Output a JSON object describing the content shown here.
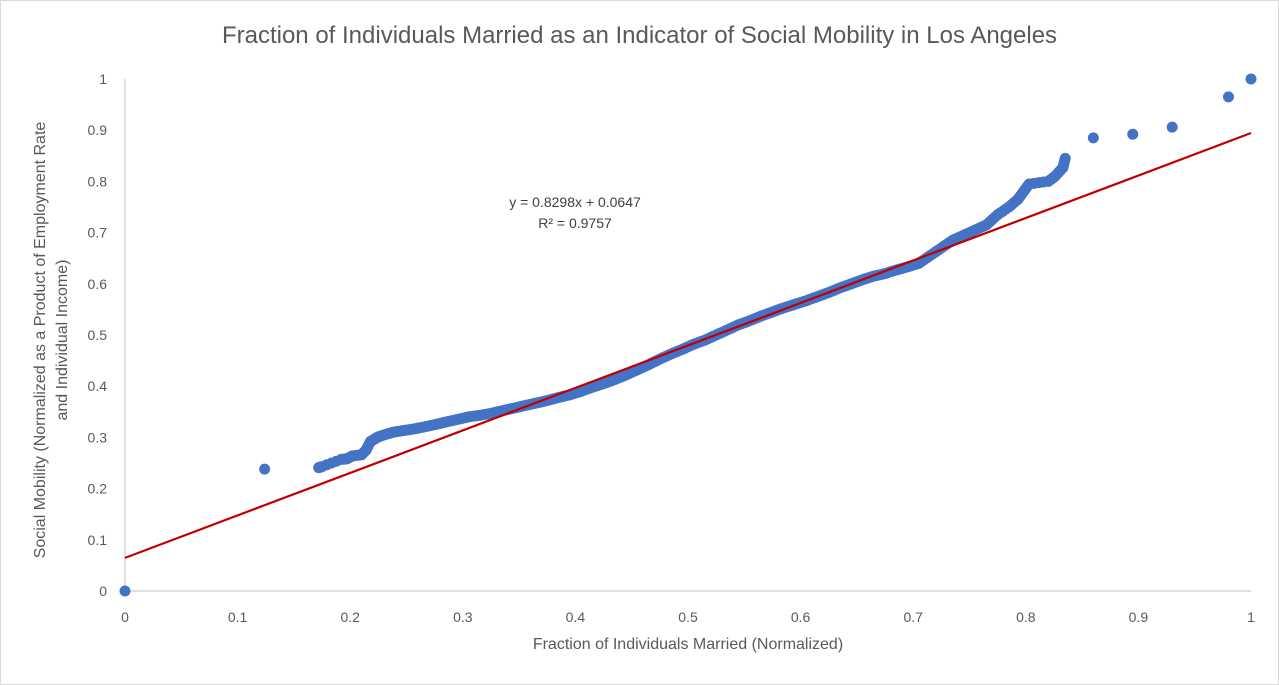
{
  "chart_data": {
    "type": "scatter",
    "title": "Fraction of Individuals Married as an Indicator of Social Mobility in Los Angeles",
    "xlabel": "Fraction of Individuals Married (Normalized)",
    "ylabel": [
      "Social Mobility (Normalized as a Product of Employment Rate",
      "and Individual Income)"
    ],
    "xlim": [
      0,
      1
    ],
    "ylim": [
      0,
      1
    ],
    "x_ticks": [
      "0",
      "0.1",
      "0.2",
      "0.3",
      "0.4",
      "0.5",
      "0.6",
      "0.7",
      "0.8",
      "0.9",
      "1"
    ],
    "y_ticks": [
      "0",
      "0.1",
      "0.2",
      "0.3",
      "0.4",
      "0.5",
      "0.6",
      "0.7",
      "0.8",
      "0.9",
      "1"
    ],
    "grid": false,
    "legend": "none",
    "point_color": "#4472c4",
    "trendline": {
      "slope": 0.8298,
      "intercept": 0.0647,
      "color": "#c00000",
      "equation_label": "y = 0.8298x + 0.0647",
      "r2_label": "R² = 0.9757"
    },
    "points": [
      [
        0,
        0
      ],
      [
        0.124,
        0.238
      ],
      [
        0.172,
        0.241
      ],
      [
        0.175,
        0.243
      ],
      [
        0.192,
        0.257
      ],
      [
        0.197,
        0.258
      ],
      [
        0.202,
        0.264
      ],
      [
        0.21,
        0.266
      ],
      [
        0.214,
        0.275
      ],
      [
        0.218,
        0.292
      ],
      [
        0.224,
        0.3
      ],
      [
        0.23,
        0.305
      ],
      [
        0.238,
        0.31
      ],
      [
        0.246,
        0.313
      ],
      [
        0.255,
        0.316
      ],
      [
        0.265,
        0.32
      ],
      [
        0.275,
        0.325
      ],
      [
        0.285,
        0.33
      ],
      [
        0.295,
        0.335
      ],
      [
        0.305,
        0.34
      ],
      [
        0.315,
        0.343
      ],
      [
        0.325,
        0.347
      ],
      [
        0.335,
        0.352
      ],
      [
        0.345,
        0.357
      ],
      [
        0.355,
        0.362
      ],
      [
        0.365,
        0.367
      ],
      [
        0.375,
        0.372
      ],
      [
        0.385,
        0.378
      ],
      [
        0.395,
        0.383
      ],
      [
        0.405,
        0.39
      ],
      [
        0.415,
        0.398
      ],
      [
        0.425,
        0.405
      ],
      [
        0.435,
        0.413
      ],
      [
        0.445,
        0.422
      ],
      [
        0.455,
        0.432
      ],
      [
        0.465,
        0.442
      ],
      [
        0.475,
        0.453
      ],
      [
        0.485,
        0.463
      ],
      [
        0.495,
        0.472
      ],
      [
        0.505,
        0.482
      ],
      [
        0.515,
        0.49
      ],
      [
        0.525,
        0.5
      ],
      [
        0.535,
        0.51
      ],
      [
        0.545,
        0.52
      ],
      [
        0.555,
        0.528
      ],
      [
        0.565,
        0.537
      ],
      [
        0.575,
        0.545
      ],
      [
        0.585,
        0.553
      ],
      [
        0.595,
        0.56
      ],
      [
        0.605,
        0.567
      ],
      [
        0.615,
        0.575
      ],
      [
        0.625,
        0.583
      ],
      [
        0.635,
        0.592
      ],
      [
        0.645,
        0.6
      ],
      [
        0.655,
        0.608
      ],
      [
        0.665,
        0.615
      ],
      [
        0.675,
        0.62
      ],
      [
        0.685,
        0.627
      ],
      [
        0.695,
        0.633
      ],
      [
        0.705,
        0.64
      ],
      [
        0.715,
        0.655
      ],
      [
        0.725,
        0.67
      ],
      [
        0.735,
        0.685
      ],
      [
        0.745,
        0.695
      ],
      [
        0.755,
        0.705
      ],
      [
        0.765,
        0.715
      ],
      [
        0.775,
        0.735
      ],
      [
        0.785,
        0.75
      ],
      [
        0.793,
        0.765
      ],
      [
        0.798,
        0.78
      ],
      [
        0.803,
        0.795
      ],
      [
        0.82,
        0.8
      ],
      [
        0.826,
        0.81
      ],
      [
        0.833,
        0.827
      ],
      [
        0.835,
        0.845
      ],
      [
        0.86,
        0.885
      ],
      [
        0.895,
        0.892
      ],
      [
        0.93,
        0.906
      ],
      [
        0.98,
        0.965
      ],
      [
        1.0,
        1.0
      ]
    ]
  }
}
